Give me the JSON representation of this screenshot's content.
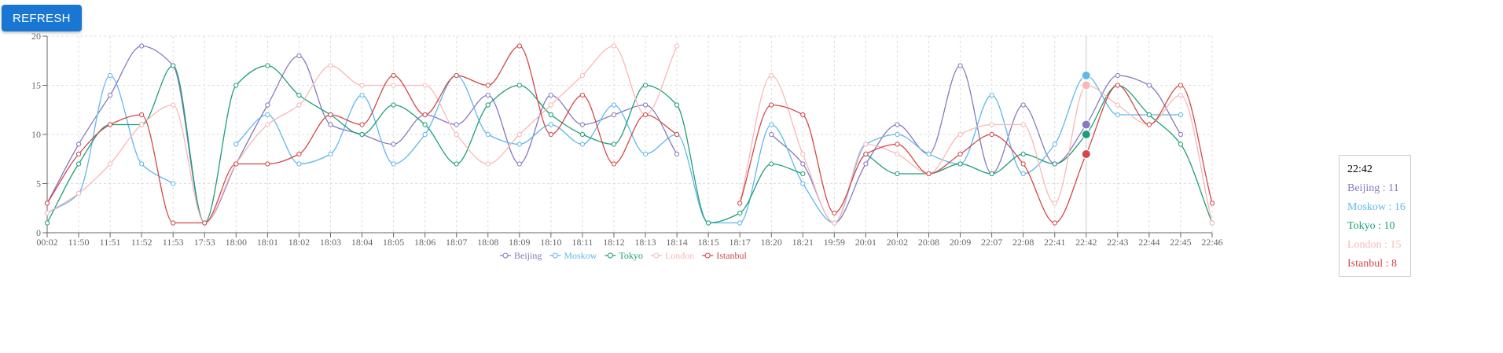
{
  "toolbar": {
    "refresh_label": "REFRESH"
  },
  "chart_data": {
    "type": "line",
    "categories": [
      "00:02",
      "11:50",
      "11:51",
      "11:52",
      "11:53",
      "17:53",
      "18:00",
      "18:01",
      "18:02",
      "18:03",
      "18:04",
      "18:05",
      "18:06",
      "18:07",
      "18:08",
      "18:09",
      "18:10",
      "18:11",
      "18:12",
      "18:13",
      "18:14",
      "18:15",
      "18:17",
      "18:20",
      "18:21",
      "19:59",
      "20:01",
      "20:02",
      "20:08",
      "20:09",
      "22:07",
      "22:08",
      "22:41",
      "22:42",
      "22:43",
      "22:44",
      "22:45",
      "22:46"
    ],
    "yticks": [
      0,
      5,
      10,
      15,
      20
    ],
    "ylim": [
      0,
      20
    ],
    "grid": true,
    "legend": "bottom-center",
    "series": [
      {
        "name": "Beijing",
        "color": "#8878c0",
        "values": [
          3,
          9,
          14,
          19,
          17,
          1,
          7,
          13,
          18,
          11,
          10,
          9,
          12,
          11,
          14,
          7,
          14,
          11,
          12,
          13,
          8,
          null,
          null,
          10,
          7,
          1,
          7,
          11,
          8,
          17,
          6,
          13,
          7,
          11,
          16,
          15,
          10,
          null
        ]
      },
      {
        "name": "Moskow",
        "color": "#60b8ea",
        "values": [
          2,
          4,
          16,
          7,
          5,
          null,
          9,
          12,
          7,
          8,
          14,
          7,
          10,
          16,
          10,
          9,
          11,
          9,
          13,
          8,
          10,
          1,
          1,
          11,
          5,
          1,
          9,
          10,
          8,
          7,
          14,
          6,
          9,
          16,
          12,
          12,
          12,
          null
        ]
      },
      {
        "name": "Tokyo",
        "color": "#1e9e78",
        "values": [
          1,
          7,
          11,
          11,
          17,
          1,
          15,
          17,
          14,
          12,
          10,
          13,
          11,
          7,
          13,
          15,
          12,
          10,
          9,
          15,
          13,
          1,
          2,
          7,
          6,
          null,
          8,
          6,
          6,
          7,
          6,
          8,
          7,
          10,
          15,
          12,
          9,
          1
        ]
      },
      {
        "name": "London",
        "color": "#f9b8b8",
        "values": [
          2,
          4,
          7,
          11,
          13,
          1,
          7,
          11,
          13,
          17,
          15,
          15,
          15,
          10,
          7,
          10,
          13,
          16,
          19,
          12,
          19,
          null,
          3,
          16,
          8,
          1,
          9,
          8,
          6,
          10,
          11,
          11,
          3,
          15,
          13,
          11,
          14,
          1
        ]
      },
      {
        "name": "Istanbul",
        "color": "#d24848",
        "values": [
          3,
          8,
          11,
          12,
          1,
          1,
          7,
          7,
          8,
          12,
          11,
          16,
          12,
          16,
          15,
          19,
          10,
          14,
          7,
          12,
          10,
          null,
          3,
          13,
          12,
          2,
          8,
          9,
          6,
          8,
          10,
          7,
          1,
          8,
          15,
          11,
          15,
          3
        ]
      }
    ],
    "tooltip": {
      "category": "22:42",
      "rows": [
        {
          "label": "Beijing : 11",
          "color": "#8878c0"
        },
        {
          "label": "Moskow : 16",
          "color": "#60b8ea"
        },
        {
          "label": "Tokyo : 10",
          "color": "#1e9e78"
        },
        {
          "label": "London : 15",
          "color": "#f9b8b8"
        },
        {
          "label": "Istanbul : 8",
          "color": "#d24848"
        }
      ]
    }
  }
}
